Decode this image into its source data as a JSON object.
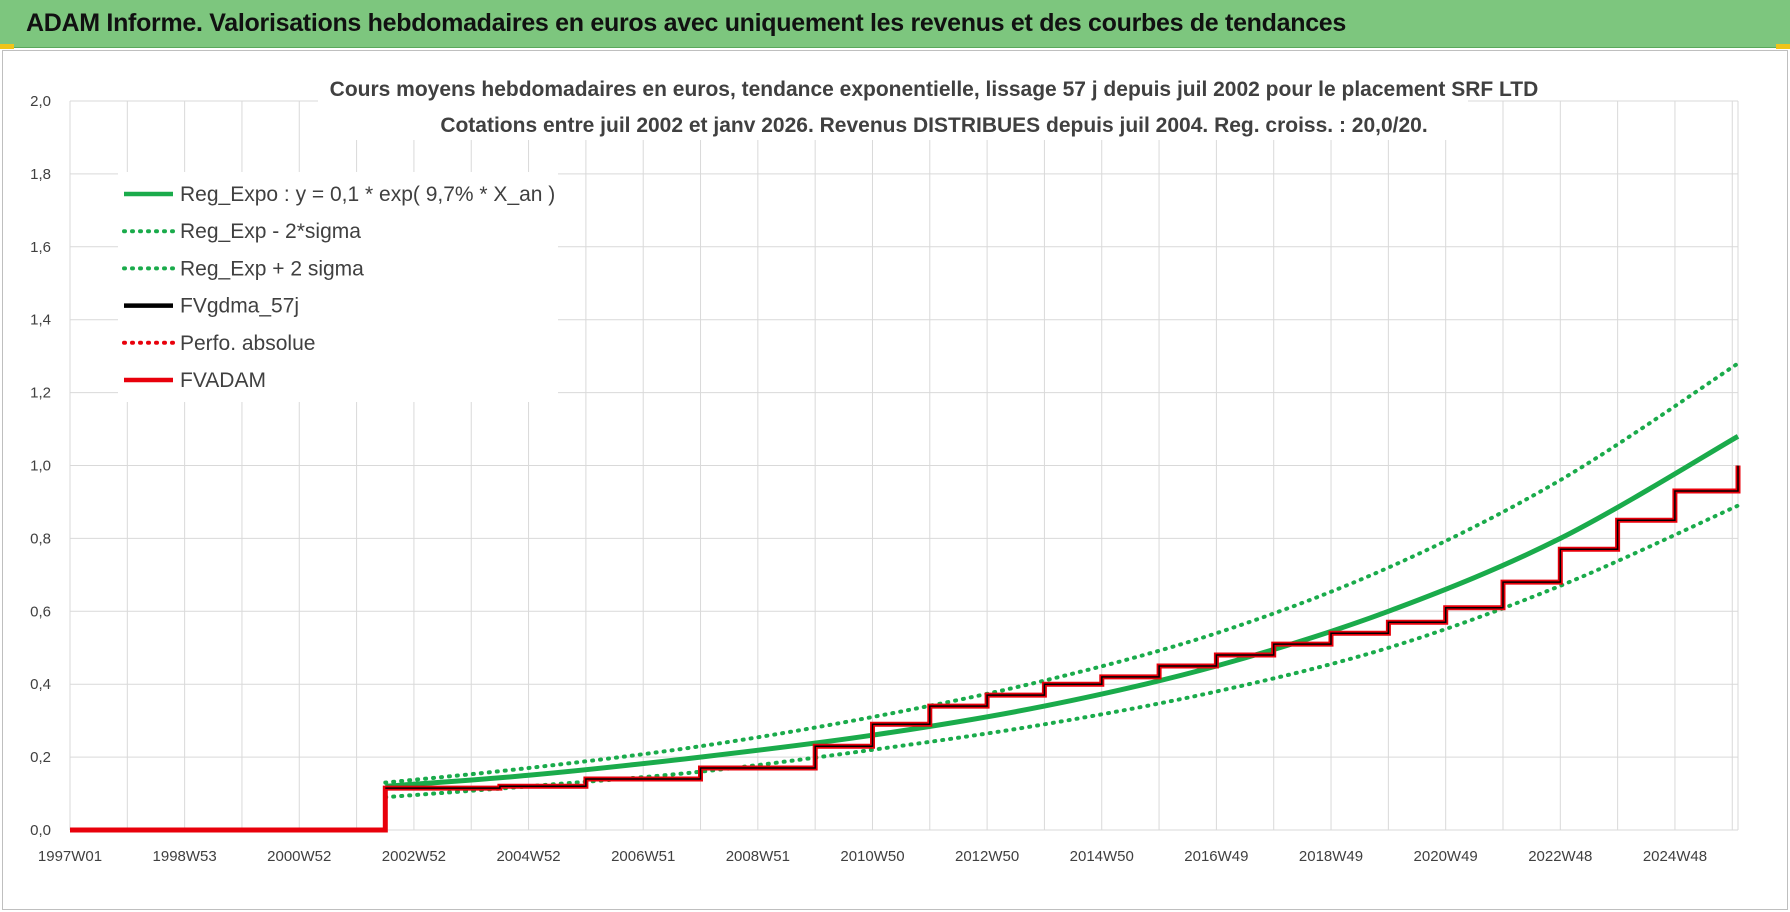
{
  "header": {
    "title": "ADAM Informe. Valorisations hebdomadaires en euros avec uniquement les revenus et des courbes de tendances"
  },
  "colors": {
    "header_bg": "#7dc67e",
    "green": "#1aab4b",
    "black": "#000000",
    "red": "#e8000b",
    "grid": "#d9d9d9"
  },
  "chart_data": {
    "type": "line",
    "title_lines": [
      "Cours moyens hebdomadaires en euros, tendance exponentielle, lissage 57 j depuis juil 2002 pour le placement SRF LTD",
      "Cotations entre juil 2002 et janv 2026. Revenus DISTRIBUES depuis juil 2004. Reg. croiss. : 20,0/20."
    ],
    "ylim": [
      0,
      2.0
    ],
    "y_ticks": [
      "0,0",
      "0,2",
      "0,4",
      "0,6",
      "0,8",
      "1,0",
      "1,2",
      "1,4",
      "1,6",
      "1,8",
      "2,0"
    ],
    "x_range": [
      1997.0,
      2026.1
    ],
    "x_ticks": [
      {
        "label": "1997W01",
        "year": 1997.0
      },
      {
        "label": "1998W53",
        "year": 1999.0
      },
      {
        "label": "2000W52",
        "year": 2001.0
      },
      {
        "label": "2002W52",
        "year": 2003.0
      },
      {
        "label": "2004W52",
        "year": 2005.0
      },
      {
        "label": "2006W51",
        "year": 2007.0
      },
      {
        "label": "2008W51",
        "year": 2009.0
      },
      {
        "label": "2010W50",
        "year": 2011.0
      },
      {
        "label": "2012W50",
        "year": 2013.0
      },
      {
        "label": "2014W50",
        "year": 2015.0
      },
      {
        "label": "2016W49",
        "year": 2017.0
      },
      {
        "label": "2018W49",
        "year": 2019.0
      },
      {
        "label": "2020W49",
        "year": 2021.0
      },
      {
        "label": "2022W48",
        "year": 2023.0
      },
      {
        "label": "2024W48",
        "year": 2025.0
      }
    ],
    "legend": [
      {
        "label": "Reg_Expo : y = 0,1 * exp( 9,7% *  X_an )",
        "style": "solid",
        "color": "#1aab4b"
      },
      {
        "label": "Reg_Exp - 2*sigma",
        "style": "dotted",
        "color": "#1aab4b"
      },
      {
        "label": "Reg_Exp + 2 sigma",
        "style": "dotted",
        "color": "#1aab4b"
      },
      {
        "label": "FVgdma_57j",
        "style": "solid",
        "color": "#000000"
      },
      {
        "label": "Perfo. absolue",
        "style": "dotted",
        "color": "#e8000b"
      },
      {
        "label": "FVADAM",
        "style": "solid",
        "color": "#e8000b"
      }
    ],
    "series": [
      {
        "name": "Reg_Expo : y = 0,1 * exp( 9,7% *  X_an )",
        "x": [
          2002.5,
          2005,
          2008,
          2011,
          2014,
          2017,
          2020,
          2023,
          2026.1
        ],
        "values": [
          0.12,
          0.15,
          0.2,
          0.26,
          0.34,
          0.45,
          0.6,
          0.8,
          1.08
        ]
      },
      {
        "name": "Reg_Exp - 2*sigma",
        "x": [
          2002.5,
          2005,
          2008,
          2011,
          2014,
          2017,
          2020,
          2023,
          2026.1
        ],
        "values": [
          0.09,
          0.12,
          0.16,
          0.22,
          0.29,
          0.38,
          0.5,
          0.67,
          0.89
        ]
      },
      {
        "name": "Reg_Exp + 2 sigma",
        "x": [
          2002.5,
          2005,
          2008,
          2011,
          2014,
          2017,
          2020,
          2023,
          2026.1
        ],
        "values": [
          0.13,
          0.17,
          0.23,
          0.31,
          0.41,
          0.54,
          0.72,
          0.96,
          1.28
        ]
      },
      {
        "name": "FVADAM",
        "x": [
          1997.0,
          2002.5,
          2002.5,
          2004.5,
          2006.0,
          2008.0,
          2010.0,
          2011.0,
          2012.0,
          2013.0,
          2014.0,
          2015.0,
          2016.0,
          2017.0,
          2018.0,
          2019.0,
          2020.0,
          2021.0,
          2022.0,
          2023.0,
          2024.0,
          2025.0,
          2026.1
        ],
        "values": [
          0.0,
          0.0,
          0.115,
          0.12,
          0.14,
          0.17,
          0.23,
          0.29,
          0.34,
          0.37,
          0.4,
          0.42,
          0.45,
          0.48,
          0.51,
          0.54,
          0.57,
          0.61,
          0.68,
          0.77,
          0.85,
          0.93,
          1.0
        ]
      },
      {
        "name": "FVgdma_57j",
        "x": [
          2002.5,
          2004.5,
          2006.0,
          2008.0,
          2010.0,
          2011.0,
          2012.0,
          2013.0,
          2014.0,
          2015.0,
          2016.0,
          2017.0,
          2018.0,
          2019.0,
          2020.0,
          2021.0,
          2022.0,
          2023.0,
          2024.0,
          2025.0,
          2026.1
        ],
        "values": [
          0.115,
          0.12,
          0.14,
          0.17,
          0.23,
          0.29,
          0.34,
          0.37,
          0.4,
          0.42,
          0.45,
          0.48,
          0.51,
          0.54,
          0.57,
          0.61,
          0.68,
          0.77,
          0.85,
          0.93,
          1.0
        ]
      }
    ]
  }
}
